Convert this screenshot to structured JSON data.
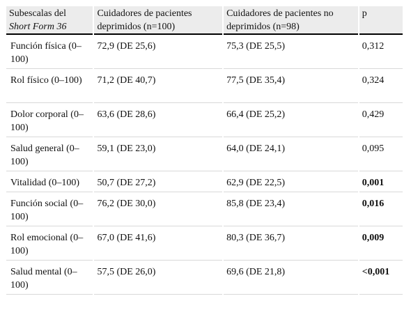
{
  "header": {
    "col1_line1": "Subescalas del",
    "col1_line2_italic": "Short Form 36",
    "col2": "Cuidadores de pacientes deprimidos (n=100)",
    "col3": "Cuidadores de pacientes no deprimidos (n=98)",
    "col4": "p"
  },
  "rows": [
    {
      "subscale": "Función física (0–100)",
      "depressed": "72,9 (DE 25,6)",
      "non_depressed": "75,3 (DE 25,5)",
      "p": "0,312",
      "significant": false
    },
    {
      "subscale": "Rol físico (0–100)",
      "depressed": "71,2 (DE 40,7)",
      "non_depressed": "77,5 (DE 35,4)",
      "p": "0,324",
      "significant": false
    },
    {
      "subscale": "Dolor corporal (0–100)",
      "depressed": "63,6 (DE 28,6)",
      "non_depressed": "66,4 (DE 25,2)",
      "p": "0,429",
      "significant": false
    },
    {
      "subscale": "Salud general (0–100)",
      "depressed": "59,1 (DE 23,0)",
      "non_depressed": "64,0 (DE 24,1)",
      "p": "0,095",
      "significant": false
    },
    {
      "subscale": "Vitalidad (0–100)",
      "depressed": "50,7 (DE 27,2)",
      "non_depressed": "62,9 (DE 22,5)",
      "p": "0,001",
      "significant": true
    },
    {
      "subscale": "Función social (0–100)",
      "depressed": "76,2 (DE 30,0)",
      "non_depressed": "85,8 (DE 23,4)",
      "p": "0,016",
      "significant": true
    },
    {
      "subscale": "Rol emocional (0–100)",
      "depressed": "67,0 (DE 41,6)",
      "non_depressed": "80,3 (DE 36,7)",
      "p": "0,009",
      "significant": true
    },
    {
      "subscale": "Salud mental (0–100)",
      "depressed": "57,5 (DE 26,0)",
      "non_depressed": "69,6 (DE 21,8)",
      "p": "<0,001",
      "significant": true
    }
  ]
}
